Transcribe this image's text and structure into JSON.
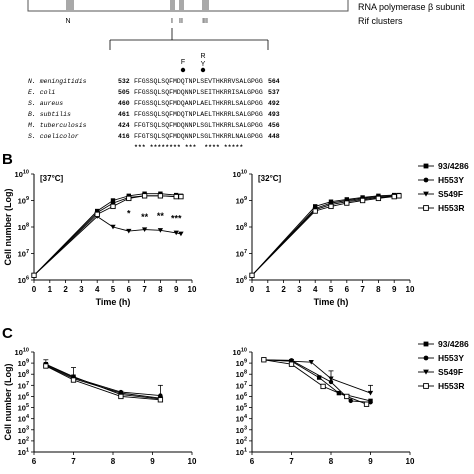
{
  "gene_map": {
    "label_subunit": "RNA polymerase β subunit",
    "label_clusters": "Rif clusters",
    "region_labels": [
      "N",
      "I",
      "II",
      "III"
    ],
    "mutation_labels": [
      "F",
      "R",
      "Y"
    ]
  },
  "alignment": {
    "rows": [
      {
        "species": "N. meningitidis",
        "start": "532",
        "seq": "FFGSSQLSQFMDQTNPLSEVTHKRRVSALGPGG",
        "end": "564"
      },
      {
        "species": "E. coli",
        "start": "505",
        "seq": "FFGSSQLSQFMDQNNPLSEITHKRRISALGPGG",
        "end": "537"
      },
      {
        "species": "S. aureus",
        "start": "460",
        "seq": "FFGSSQLSQFMDQANPLAELTHKRRLSALGPGG",
        "end": "492"
      },
      {
        "species": "B. subtilis",
        "start": "461",
        "seq": "FFGSSQLSQFMDQTNPLAELTHKRRLSALGPGG",
        "end": "493"
      },
      {
        "species": "M. tuberculosis",
        "start": "424",
        "seq": "FFGTSQLSQFMDQNNPLSGLTHKRRLSALGPGG",
        "end": "456"
      },
      {
        "species": "S. coelicolor",
        "start": "416",
        "seq": "FFGTSQLSQFMDQNNPLSGLTHKRRLNALGPGG",
        "end": "448"
      }
    ],
    "consensus": "*** ******** ***  **** *****"
  },
  "panel_B": {
    "letter": "B"
  },
  "panel_C": {
    "letter": "C"
  },
  "legend": [
    "93/4286",
    "H553Y",
    "S549F",
    "H553R"
  ],
  "chart_data": [
    {
      "type": "line",
      "panel": "B",
      "annotation": "[37°C]",
      "xlabel": "Time (h)",
      "ylabel": "Cell number (Log)",
      "xlim": [
        0,
        10
      ],
      "xticks": [
        "0",
        "1",
        "2",
        "3",
        "4",
        "5",
        "6",
        "7",
        "8",
        "9",
        "10"
      ],
      "yscale": "log",
      "ylim": [
        1000000,
        10000000000
      ],
      "yticks": [
        {
          "exp": "6"
        },
        {
          "exp": "7"
        },
        {
          "exp": "8"
        },
        {
          "exp": "9"
        },
        {
          "exp": "10"
        }
      ],
      "x": [
        0,
        4,
        5,
        6,
        7,
        8,
        9,
        9.3
      ],
      "series": [
        {
          "name": "93/4286",
          "marker": "filled-square",
          "values": [
            1500000,
            400000000,
            1000000000,
            1500000000,
            1800000000,
            1800000000,
            1600000000,
            1500000000
          ]
        },
        {
          "name": "H553Y",
          "marker": "filled-circle",
          "values": [
            1500000,
            350000000,
            800000000,
            1300000000,
            1500000000,
            1500000000,
            1400000000,
            1400000000
          ]
        },
        {
          "name": "S549F",
          "marker": "filled-triangle",
          "values": [
            1500000,
            250000000,
            100000000,
            70000000,
            80000000,
            75000000,
            60000000,
            55000000
          ]
        },
        {
          "name": "H553R",
          "marker": "open-square",
          "values": [
            1500000,
            300000000,
            600000000,
            1200000000,
            1500000000,
            1500000000,
            1400000000,
            1400000000
          ]
        }
      ],
      "significance": [
        {
          "x": 6,
          "text": "*",
          "y": 250000000
        },
        {
          "x": 7,
          "text": "**",
          "y": 180000000
        },
        {
          "x": 8,
          "text": "**",
          "y": 200000000
        },
        {
          "x": 9,
          "text": "***",
          "y": 160000000
        }
      ]
    },
    {
      "type": "line",
      "panel": "B",
      "annotation": "[32°C]",
      "xlabel": "Time (h)",
      "ylabel": "",
      "xlim": [
        0,
        10
      ],
      "xticks": [
        "0",
        "1",
        "2",
        "3",
        "4",
        "5",
        "6",
        "7",
        "8",
        "9",
        "10"
      ],
      "yscale": "log",
      "ylim": [
        1000000,
        10000000000
      ],
      "yticks": [
        {
          "exp": "6"
        },
        {
          "exp": "7"
        },
        {
          "exp": "8"
        },
        {
          "exp": "9"
        },
        {
          "exp": "10"
        }
      ],
      "x": [
        0,
        4,
        5,
        6,
        7,
        8,
        9,
        9.3
      ],
      "series": [
        {
          "name": "93/4286",
          "marker": "filled-square",
          "values": [
            1500000,
            600000000,
            900000000,
            1100000000,
            1300000000,
            1500000000,
            1600000000,
            1600000000
          ]
        },
        {
          "name": "H553Y",
          "marker": "filled-circle",
          "values": [
            1500000,
            500000000,
            800000000,
            1000000000,
            1200000000,
            1400000000,
            1500000000,
            1500000000
          ]
        },
        {
          "name": "S549F",
          "marker": "filled-triangle",
          "values": [
            1500000,
            450000000,
            700000000,
            900000000,
            1100000000,
            1300000000,
            1400000000,
            1500000000
          ]
        },
        {
          "name": "H553R",
          "marker": "open-square",
          "values": [
            1500000,
            400000000,
            600000000,
            800000000,
            1000000000,
            1200000000,
            1400000000,
            1500000000
          ]
        }
      ]
    },
    {
      "type": "line",
      "panel": "C",
      "xlabel": "",
      "ylabel": "Cell number (Log)",
      "xlim": [
        6,
        10
      ],
      "xticks": [
        "6",
        "7",
        "8",
        "9",
        "10"
      ],
      "yscale": "log",
      "ylim": [
        10,
        10000000000
      ],
      "yticks": [
        {
          "exp": "1"
        },
        {
          "exp": "2"
        },
        {
          "exp": "3"
        },
        {
          "exp": "4"
        },
        {
          "exp": "5"
        },
        {
          "exp": "6"
        },
        {
          "exp": "7"
        },
        {
          "exp": "8"
        },
        {
          "exp": "9"
        },
        {
          "exp": "10"
        }
      ],
      "x": [
        6.3,
        7,
        8.2,
        9.2
      ],
      "series": [
        {
          "name": "93/4286",
          "marker": "filled-square",
          "values": [
            800000000,
            60000000,
            1500000,
            600000
          ]
        },
        {
          "name": "H553Y",
          "marker": "filled-circle",
          "values": [
            700000000,
            50000000,
            2500000,
            1200000
          ]
        },
        {
          "name": "S549F",
          "marker": "filled-triangle",
          "values": [
            600000000,
            40000000,
            2000000,
            700000
          ]
        },
        {
          "name": "H553R",
          "marker": "open-square",
          "values": [
            550000000,
            30000000,
            1000000,
            500000
          ]
        }
      ],
      "error_bars": [
        {
          "x": 6.3,
          "y": 800000000,
          "yhi": 2000000000
        },
        {
          "x": 7,
          "y": 60000000,
          "yhi": 400000000
        },
        {
          "x": 9.2,
          "y": 1200000,
          "yhi": 10000000
        }
      ]
    },
    {
      "type": "line",
      "panel": "C",
      "xlabel": "",
      "ylabel": "",
      "xlim": [
        6,
        10
      ],
      "xticks": [
        "6",
        "7",
        "8",
        "9",
        "10"
      ],
      "yscale": "log",
      "ylim": [
        10,
        10000000000
      ],
      "yticks": [
        {
          "exp": "1"
        },
        {
          "exp": "2"
        },
        {
          "exp": "3"
        },
        {
          "exp": "4"
        },
        {
          "exp": "5"
        },
        {
          "exp": "6"
        },
        {
          "exp": "7"
        },
        {
          "exp": "8"
        },
        {
          "exp": "9"
        },
        {
          "exp": "10"
        }
      ],
      "series": [
        {
          "name": "93/4286",
          "marker": "filled-square",
          "x": [
            6.3,
            7,
            7.7,
            8.2,
            9
          ],
          "values": [
            2000000000,
            1500000000,
            50000000,
            2000000,
            400000
          ]
        },
        {
          "name": "H553Y",
          "marker": "filled-circle",
          "x": [
            6.3,
            7,
            8,
            8.5,
            9
          ],
          "values": [
            2000000000,
            1800000000,
            20000000,
            400000,
            300000
          ]
        },
        {
          "name": "S549F",
          "marker": "filled-triangle",
          "x": [
            6.3,
            7,
            7.5,
            8,
            9
          ],
          "values": [
            2000000000,
            1500000000,
            1200000000,
            40000000,
            2000000
          ]
        },
        {
          "name": "H553R",
          "marker": "open-square",
          "x": [
            6.3,
            7,
            7.8,
            8.4,
            8.9
          ],
          "values": [
            2000000000,
            800000000,
            8000000,
            1000000,
            200000
          ]
        }
      ],
      "error_bars": [
        {
          "x": 8,
          "y": 20000000,
          "yhi": 200000000
        },
        {
          "x": 9,
          "y": 2000000,
          "yhi": 10000000
        }
      ]
    }
  ]
}
